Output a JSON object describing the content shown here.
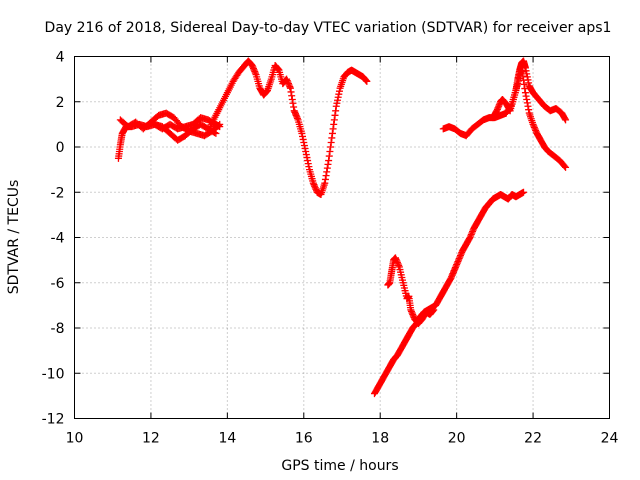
{
  "chart_data": {
    "type": "scatter",
    "title": "Day 216 of 2018, Sidereal Day-to-day VTEC variation (SDTVAR) for receiver aps1",
    "xlabel": "GPS time / hours",
    "ylabel": "SDTVAR / TECUs",
    "xlim": [
      10,
      24
    ],
    "ylim": [
      -12,
      4
    ],
    "xticks": [
      10,
      12,
      14,
      16,
      18,
      20,
      22,
      24
    ],
    "yticks": [
      -12,
      -10,
      -8,
      -6,
      -4,
      -2,
      0,
      2,
      4
    ],
    "grid": true,
    "marker": "+",
    "color": "#ff0000",
    "series": [
      {
        "x": [
          11.15,
          11.2,
          11.25,
          11.35,
          11.5,
          11.7,
          11.9,
          12.1,
          12.3,
          12.5,
          12.7,
          12.9,
          13.1,
          13.3,
          13.5,
          13.7,
          13.8
        ],
        "y": [
          -0.5,
          0.1,
          0.6,
          0.9,
          0.9,
          1.0,
          0.9,
          1.0,
          0.8,
          1.0,
          0.8,
          0.9,
          1.0,
          1.3,
          1.2,
          1.0,
          0.9
        ]
      },
      {
        "x": [
          11.2,
          11.4,
          11.6,
          11.8,
          12.0,
          12.2,
          12.4,
          12.6,
          12.8,
          13.0,
          13.2,
          13.4,
          13.6,
          13.8
        ],
        "y": [
          1.2,
          0.9,
          1.1,
          0.8,
          1.1,
          1.4,
          1.5,
          1.3,
          0.9,
          0.7,
          0.6,
          0.5,
          0.7,
          1.0
        ]
      },
      {
        "x": [
          12.1,
          12.3,
          12.5,
          12.7,
          12.9,
          13.1,
          13.3,
          13.5,
          13.7
        ],
        "y": [
          1.0,
          0.9,
          0.6,
          0.3,
          0.5,
          0.8,
          1.0,
          0.8,
          0.6
        ]
      },
      {
        "x": [
          13.55,
          13.7,
          13.85,
          14.0,
          14.15,
          14.3,
          14.45,
          14.55,
          14.65,
          14.75,
          14.85,
          14.95,
          15.05,
          15.15,
          15.25,
          15.35,
          15.45,
          15.55,
          15.65,
          15.75,
          15.85,
          15.95,
          16.05,
          16.15,
          16.25,
          16.35,
          16.45,
          16.55,
          16.65,
          16.75,
          16.85,
          16.95,
          17.05,
          17.15,
          17.25,
          17.35,
          17.45,
          17.55,
          17.65
        ],
        "y": [
          0.9,
          1.4,
          1.9,
          2.4,
          2.9,
          3.3,
          3.6,
          3.8,
          3.6,
          3.2,
          2.6,
          2.3,
          2.5,
          3.0,
          3.6,
          3.4,
          2.8,
          3.0,
          2.6,
          1.6,
          1.2,
          0.6,
          -0.2,
          -1.0,
          -1.6,
          -2.0,
          -2.1,
          -1.6,
          -0.6,
          0.6,
          1.8,
          2.6,
          3.1,
          3.3,
          3.4,
          3.3,
          3.2,
          3.1,
          2.9
        ]
      },
      {
        "x": [
          17.85,
          17.95,
          18.05,
          18.15,
          18.25,
          18.35,
          18.45,
          18.55,
          18.65,
          18.75,
          18.85,
          18.95,
          19.05,
          19.15,
          19.25,
          19.35,
          19.45,
          19.55,
          19.65,
          19.75,
          19.85,
          19.95,
          20.05,
          20.15,
          20.25,
          20.35,
          20.45,
          20.55,
          20.65,
          20.75,
          20.85,
          20.95,
          21.05,
          21.15,
          21.25,
          21.35,
          21.45,
          21.55,
          21.65,
          21.75
        ],
        "y": [
          -10.9,
          -10.6,
          -10.3,
          -10.0,
          -9.7,
          -9.4,
          -9.2,
          -8.9,
          -8.6,
          -8.3,
          -8.0,
          -7.8,
          -7.5,
          -7.3,
          -7.2,
          -7.1,
          -7.0,
          -6.7,
          -6.4,
          -6.1,
          -5.8,
          -5.4,
          -5.0,
          -4.6,
          -4.3,
          -4.0,
          -3.6,
          -3.3,
          -3.0,
          -2.7,
          -2.5,
          -2.3,
          -2.2,
          -2.1,
          -2.2,
          -2.3,
          -2.1,
          -2.2,
          -2.1,
          -2.0
        ]
      },
      {
        "x": [
          18.2,
          18.25,
          18.3,
          18.35,
          18.4,
          18.5,
          18.6,
          18.7,
          18.75,
          18.8,
          18.9,
          19.0,
          19.1,
          19.2,
          19.3,
          19.4
        ],
        "y": [
          -6.1,
          -6.0,
          -5.5,
          -5.0,
          -4.9,
          -5.3,
          -6.0,
          -6.7,
          -6.6,
          -7.2,
          -7.6,
          -7.8,
          -7.6,
          -7.3,
          -7.4,
          -7.2
        ]
      },
      {
        "x": [
          19.65,
          19.8,
          19.95,
          20.1,
          20.25,
          20.4,
          20.55,
          20.7,
          20.85,
          21.0,
          21.15,
          21.3,
          21.45,
          21.55,
          21.6,
          21.65,
          21.7,
          21.75,
          21.8,
          21.9,
          22.0,
          22.1,
          22.2,
          22.3,
          22.45,
          22.6,
          22.75,
          22.85
        ],
        "y": [
          0.8,
          0.9,
          0.8,
          0.6,
          0.5,
          0.8,
          1.0,
          1.2,
          1.3,
          1.3,
          1.4,
          1.5,
          1.9,
          2.5,
          3.0,
          3.4,
          3.7,
          3.8,
          3.5,
          2.7,
          2.4,
          2.2,
          2.0,
          1.8,
          1.6,
          1.7,
          1.5,
          1.2
        ]
      },
      {
        "x": [
          20.95,
          21.05,
          21.15,
          21.2,
          21.3,
          21.4,
          21.5,
          21.6,
          21.7,
          21.8,
          21.9,
          22.0,
          22.1,
          22.2,
          22.3,
          22.4,
          22.55,
          22.7,
          22.85
        ],
        "y": [
          1.3,
          1.6,
          2.0,
          2.1,
          1.9,
          1.6,
          2.2,
          2.8,
          3.5,
          2.4,
          1.5,
          1.0,
          0.6,
          0.3,
          0.0,
          -0.2,
          -0.4,
          -0.6,
          -0.9
        ]
      }
    ]
  }
}
